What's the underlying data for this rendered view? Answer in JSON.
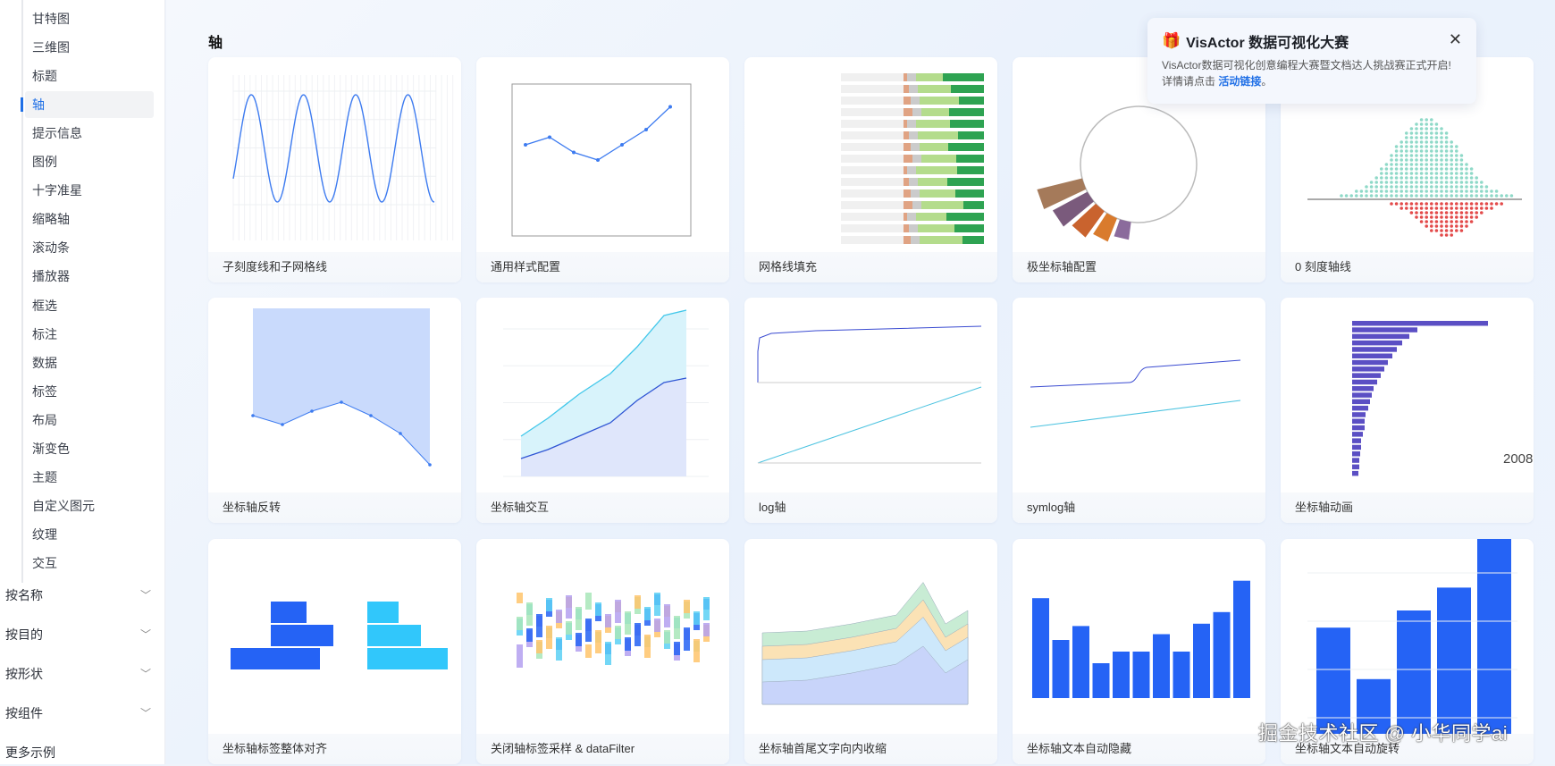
{
  "sidebar": {
    "items": [
      {
        "label": "甘特图"
      },
      {
        "label": "三维图"
      },
      {
        "label": "标题"
      },
      {
        "label": "轴",
        "active": true
      },
      {
        "label": "提示信息"
      },
      {
        "label": "图例"
      },
      {
        "label": "十字准星"
      },
      {
        "label": "缩略轴"
      },
      {
        "label": "滚动条"
      },
      {
        "label": "播放器"
      },
      {
        "label": "框选"
      },
      {
        "label": "标注"
      },
      {
        "label": "数据"
      },
      {
        "label": "标签"
      },
      {
        "label": "布局"
      },
      {
        "label": "渐变色"
      },
      {
        "label": "主题"
      },
      {
        "label": "自定义图元"
      },
      {
        "label": "纹理"
      },
      {
        "label": "交互"
      }
    ],
    "groups": [
      {
        "label": "按名称"
      },
      {
        "label": "按目的"
      },
      {
        "label": "按形状"
      },
      {
        "label": "按组件"
      }
    ],
    "more": "更多示例"
  },
  "section_title": "轴",
  "cards": [
    {
      "label": "子刻度线和子网格线",
      "thumb": "sine"
    },
    {
      "label": "通用样式配置",
      "thumb": "line-temp"
    },
    {
      "label": "网格线填充",
      "thumb": "stacked-hbar"
    },
    {
      "label": "极坐标轴配置",
      "thumb": "polar"
    },
    {
      "label": "0 刻度轴线",
      "thumb": "dots"
    },
    {
      "label": "坐标轴反转",
      "thumb": "inverse-area"
    },
    {
      "label": "坐标轴交互",
      "thumb": "area-two"
    },
    {
      "label": "log轴",
      "thumb": "log"
    },
    {
      "label": "symlog轴",
      "thumb": "symlog"
    },
    {
      "label": "坐标轴动画",
      "thumb": "bar-race"
    },
    {
      "label": "坐标轴标签整体对齐",
      "thumb": "pyramid"
    },
    {
      "label": "关闭轴标签采样 & dataFilter",
      "thumb": "range-bars"
    },
    {
      "label": "坐标轴首尾文字向内收缩",
      "thumb": "stacked-area"
    },
    {
      "label": "坐标轴文本自动隐藏",
      "thumb": "bars"
    },
    {
      "label": "坐标轴文本自动旋转",
      "thumb": "bars-big"
    }
  ],
  "notice": {
    "icon": "gift-icon",
    "title": "VisActor 数据可视化大赛",
    "body": "VisActor数据可视化创意编程大赛暨文档达人挑战赛正式开启!",
    "prefix": "详情请点击",
    "link": "活动链接",
    "suffix": "。"
  },
  "bar_race_year": "2008",
  "watermark": "掘金技术社区 @ 小华同学ai",
  "colors": {
    "accent": "#1f6fe6",
    "bar": "#2563f5",
    "bar_race": "#5b4fc4",
    "area": "#c9dafc"
  }
}
